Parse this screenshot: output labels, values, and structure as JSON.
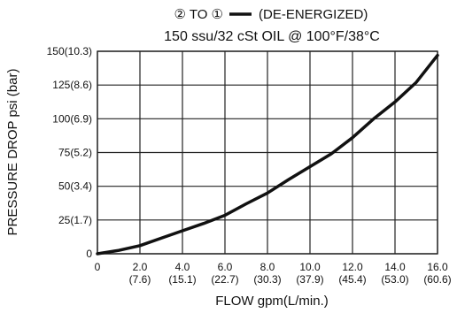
{
  "chart_data": {
    "type": "line",
    "title": "150 ssu/32 cSt OIL @ 100°F/38°C",
    "legend": {
      "prefix": "② TO ①",
      "label": "(DE-ENERGIZED)",
      "placement": "top"
    },
    "xlabel": "FLOW gpm(L/min.)",
    "ylabel": "PRESSURE DROP psi (bar)",
    "xlim": [
      0,
      16
    ],
    "ylim": [
      0,
      150
    ],
    "x_ticks": [
      {
        "value": 0,
        "label": "0",
        "sub": ""
      },
      {
        "value": 2,
        "label": "2.0",
        "sub": "(7.6)"
      },
      {
        "value": 4,
        "label": "4.0",
        "sub": "(15.1)"
      },
      {
        "value": 6,
        "label": "6.0",
        "sub": "(22.7)"
      },
      {
        "value": 8,
        "label": "8.0",
        "sub": "(30.3)"
      },
      {
        "value": 10,
        "label": "10.0",
        "sub": "(37.9)"
      },
      {
        "value": 12,
        "label": "12.0",
        "sub": "(45.4)"
      },
      {
        "value": 14,
        "label": "14.0",
        "sub": "(53.0)"
      },
      {
        "value": 16,
        "label": "16.0",
        "sub": "(60.6)"
      }
    ],
    "y_ticks": [
      {
        "value": 0,
        "label": "0"
      },
      {
        "value": 25,
        "label": "25(1.7)"
      },
      {
        "value": 50,
        "label": "50(3.4)"
      },
      {
        "value": 75,
        "label": "75(5.2)"
      },
      {
        "value": 100,
        "label": "100(6.9)"
      },
      {
        "value": 125,
        "label": "125(8.6)"
      },
      {
        "value": 150,
        "label": "150(10.3)"
      }
    ],
    "grid": true,
    "series": [
      {
        "x": [
          0,
          1,
          2,
          3,
          4,
          5,
          6,
          7,
          8,
          9,
          10,
          11,
          12,
          13,
          14,
          15,
          16
        ],
        "y": [
          0,
          2.5,
          6,
          11.5,
          17,
          22.5,
          28.5,
          37,
          45,
          55,
          64.5,
          74,
          86,
          100,
          112.5,
          127,
          147
        ]
      }
    ]
  }
}
